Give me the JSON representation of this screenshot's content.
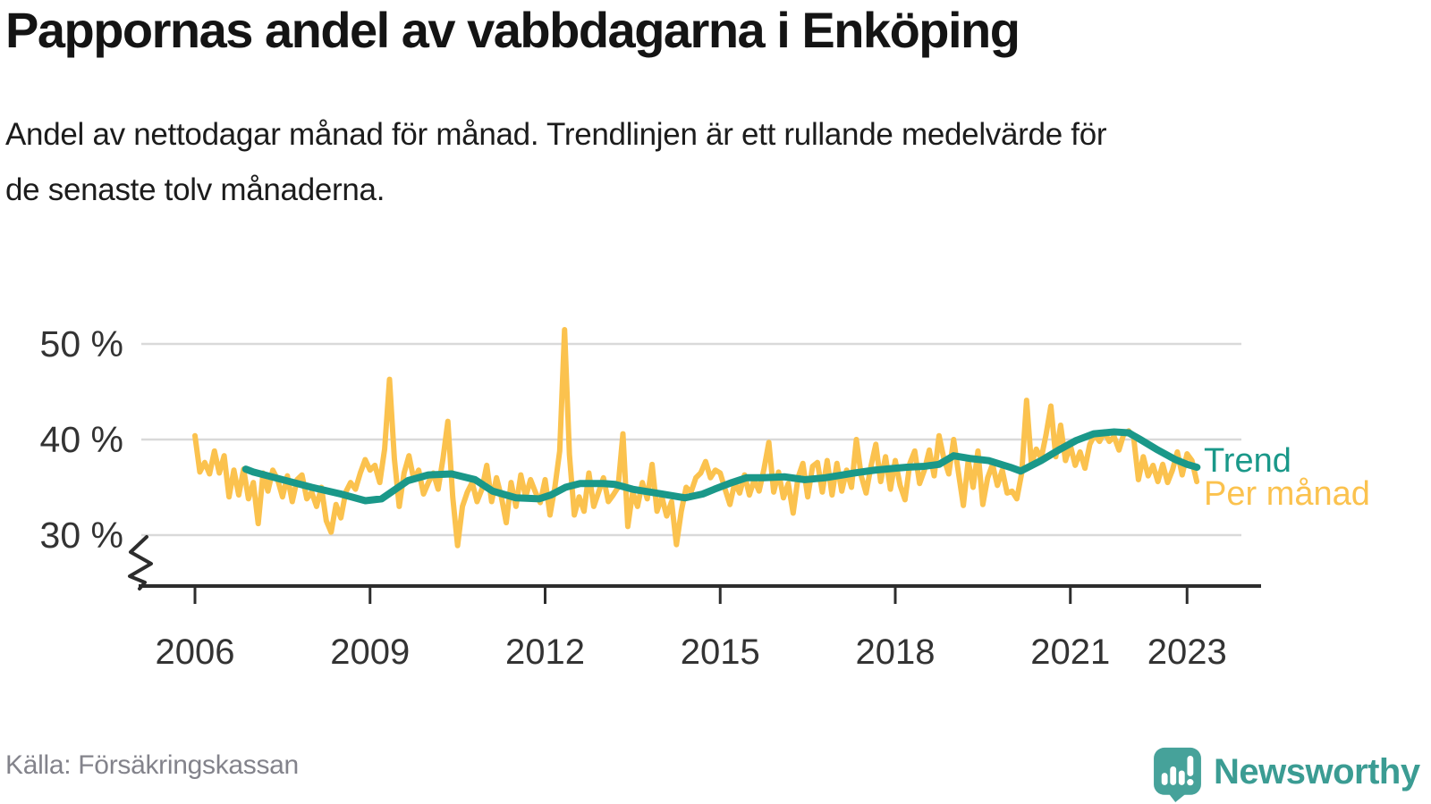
{
  "title": "Pappornas andel av vabbdagarna i Enköping",
  "subtitle": "Andel av nettodagar månad för månad. Trendlinjen är ett rullande medelvärde för de senaste tolv månaderna.",
  "source": "Källa: Försäkringskassan",
  "logo": {
    "brand": "Newsworthy",
    "icon": "speech-bubble-bar-chart-exclamation"
  },
  "chart_data": {
    "type": "line",
    "unit": "%",
    "frequency": "monthly",
    "start_month": "2006-01",
    "end_month": "2023-03",
    "x_ticks": [
      "2006",
      "2009",
      "2012",
      "2015",
      "2018",
      "2021",
      "2023"
    ],
    "x_tick_years": [
      2006,
      2009,
      2012,
      2015,
      2018,
      2021,
      2023
    ],
    "y_ticks": [
      {
        "value": 30,
        "label": "30 %"
      },
      {
        "value": 40,
        "label": "40 %"
      },
      {
        "value": 50,
        "label": "50 %"
      }
    ],
    "axis_break": true,
    "grid": true,
    "legend_position": "right-end-of-lines",
    "colors": {
      "per_manad": "#FBC24E",
      "trend": "#1A9889"
    },
    "series": [
      {
        "name": "Per månad",
        "color_key": "per_manad",
        "start_year": 2006.0,
        "step_years": 0.0833333,
        "values": [
          40.4,
          36.6,
          37.6,
          36.4,
          38.8,
          36.5,
          38.3,
          34.0,
          36.8,
          34.2,
          36.9,
          33.8,
          35.5,
          31.2,
          36.5,
          34.6,
          36.8,
          35.8,
          34.0,
          36.2,
          33.5,
          35.8,
          36.3,
          33.8,
          34.5,
          33.0,
          35.0,
          31.5,
          30.3,
          33.2,
          31.8,
          34.5,
          35.5,
          34.8,
          36.5,
          37.9,
          36.8,
          37.3,
          35.5,
          39.0,
          46.3,
          38.0,
          33.0,
          36.5,
          38.3,
          35.8,
          36.8,
          34.3,
          35.5,
          36.5,
          34.8,
          38.0,
          41.9,
          34.0,
          28.9,
          33.0,
          34.5,
          35.5,
          33.5,
          34.8,
          37.3,
          33.5,
          36.0,
          34.0,
          31.3,
          35.5,
          33.0,
          36.3,
          34.0,
          35.8,
          34.5,
          33.4,
          35.8,
          32.1,
          35.0,
          38.8,
          51.5,
          38.4,
          32.1,
          34.0,
          32.5,
          36.5,
          33.0,
          34.5,
          36.0,
          33.5,
          34.2,
          35.0,
          40.6,
          30.9,
          34.5,
          33.0,
          35.5,
          33.8,
          37.4,
          32.5,
          34.0,
          32.0,
          33.5,
          29.0,
          32.5,
          35.0,
          34.5,
          36.0,
          36.5,
          37.7,
          36.0,
          36.8,
          36.5,
          34.8,
          33.2,
          35.5,
          34.4,
          36.3,
          34.2,
          35.8,
          34.6,
          36.9,
          39.7,
          34.5,
          36.6,
          33.9,
          35.4,
          32.3,
          36.0,
          37.5,
          34.0,
          37.2,
          37.6,
          34.5,
          37.8,
          34.2,
          37.5,
          34.6,
          36.8,
          35.0,
          40.0,
          36.2,
          34.4,
          37.2,
          39.5,
          35.6,
          38.2,
          34.8,
          37.8,
          35.2,
          33.7,
          37.5,
          38.8,
          35.4,
          36.8,
          38.9,
          36.2,
          40.4,
          38.0,
          36.4,
          40.0,
          36.5,
          33.1,
          37.8,
          35.0,
          38.8,
          33.2,
          36.0,
          37.4,
          35.2,
          36.8,
          34.4,
          34.6,
          33.8,
          36.5,
          44.1,
          37.4,
          39.0,
          38.0,
          40.5,
          43.5,
          38.2,
          41.5,
          37.8,
          39.4,
          37.3,
          38.7,
          37.0,
          39.5,
          40.5,
          39.8,
          40.8,
          39.8,
          40.3,
          38.9,
          40.6,
          40.9,
          40.3,
          35.8,
          38.2,
          36.2,
          37.3,
          35.6,
          37.4,
          35.5,
          36.8,
          38.7,
          36.3,
          38.5,
          37.8,
          35.6
        ]
      },
      {
        "name": "Trend",
        "color_key": "trend",
        "x": [
          2006.87,
          2007.0,
          2007.5,
          2008.0,
          2008.5,
          2008.92,
          2009.2,
          2009.65,
          2010.0,
          2010.4,
          2010.8,
          2011.1,
          2011.5,
          2011.9,
          2012.1,
          2012.35,
          2012.6,
          2013.0,
          2013.2,
          2013.5,
          2014.0,
          2014.4,
          2014.7,
          2014.9,
          2015.2,
          2015.45,
          2015.75,
          2016.1,
          2016.45,
          2016.8,
          2017.0,
          2017.3,
          2017.65,
          2018.0,
          2018.2,
          2018.5,
          2018.75,
          2019.0,
          2019.3,
          2019.6,
          2019.97,
          2020.15,
          2020.5,
          2020.8,
          2021.1,
          2021.4,
          2021.75,
          2022.0,
          2022.2,
          2022.5,
          2022.8,
          2023.0,
          2023.17
        ],
        "values": [
          36.9,
          36.6,
          35.8,
          35.0,
          34.3,
          33.6,
          33.8,
          35.7,
          36.3,
          36.4,
          35.8,
          34.6,
          33.9,
          33.8,
          34.2,
          35.0,
          35.4,
          35.4,
          35.3,
          34.8,
          34.3,
          33.9,
          34.3,
          34.8,
          35.5,
          36.0,
          36.0,
          36.1,
          35.8,
          36.0,
          36.2,
          36.5,
          36.8,
          37.0,
          37.1,
          37.2,
          37.4,
          38.3,
          38.0,
          37.8,
          37.1,
          36.7,
          37.8,
          38.9,
          39.9,
          40.6,
          40.8,
          40.7,
          40.0,
          38.9,
          37.9,
          37.4,
          37.1
        ]
      }
    ]
  }
}
